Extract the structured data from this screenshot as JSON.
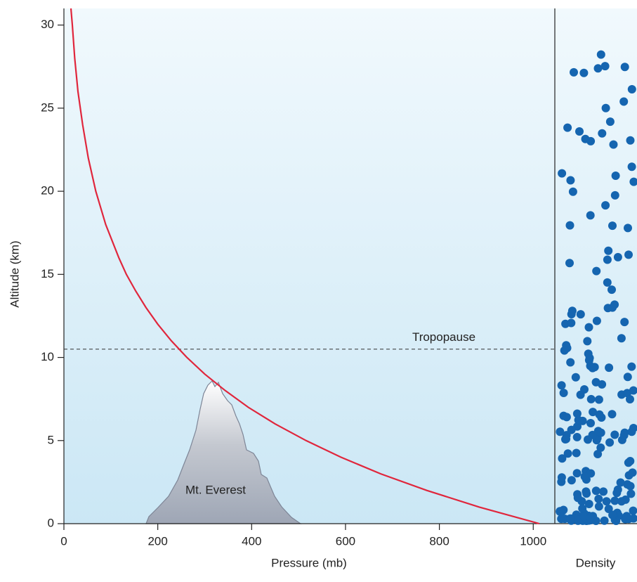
{
  "chart_data": {
    "type": "line",
    "xlabel": "Pressure (mb)",
    "ylabel": "Altitude (km)",
    "x": [
      1013,
      885,
      773,
      675,
      590,
      516,
      450,
      393,
      344,
      300,
      262,
      229,
      200,
      175,
      153,
      133,
      117,
      89,
      68,
      52,
      40,
      30,
      23,
      18,
      15
    ],
    "values": [
      0,
      1,
      2,
      3,
      4,
      5,
      6,
      7,
      8,
      9,
      10,
      11,
      12,
      13,
      14,
      15,
      16,
      18,
      20,
      22,
      24,
      26,
      28,
      30,
      31
    ],
    "color": "#e0263c",
    "xlim": [
      0,
      1046
    ],
    "xticks": [
      0,
      200,
      400,
      600,
      800,
      1000
    ],
    "ylim": [
      0,
      31
    ],
    "yticks": [
      0,
      5,
      10,
      15,
      20,
      25,
      30
    ],
    "reference_line": {
      "label": "Tropopause",
      "value": 10.5
    },
    "feature_label": "Mt. Everest",
    "panel_label": "Density"
  }
}
